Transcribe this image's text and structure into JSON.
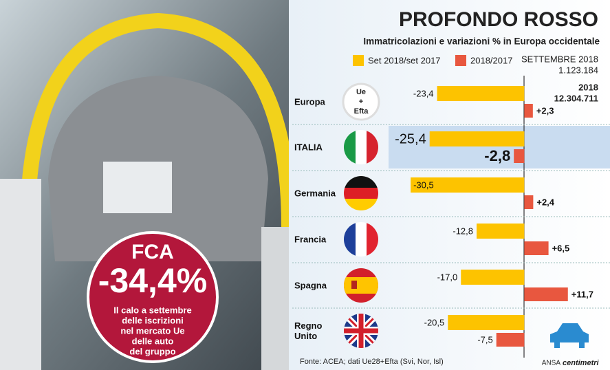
{
  "title": "PROFONDO ROSSO",
  "subtitle": "Immatricolazioni e variazioni % in Europa occidentale",
  "totals": {
    "month_label": "SETTEMBRE 2018",
    "month_value": "1.123.184",
    "year_label": "2018",
    "year_value": "12.304.711"
  },
  "fca": {
    "name": "FCA",
    "change": "-34,4%",
    "caption": [
      "Il calo a settembre",
      "delle iscrizioni",
      "nel mercato Ue",
      "delle auto",
      "del gruppo"
    ]
  },
  "europe_badge": [
    "Ue",
    "+",
    "Efta"
  ],
  "chart_data": {
    "type": "bar",
    "orientation": "horizontal",
    "categories": [
      "Europa",
      "ITALIA",
      "Germania",
      "Francia",
      "Spagna",
      "Regno Unito"
    ],
    "series": [
      {
        "name": "Set 2018/set 2017",
        "color": "#fdc300",
        "values": [
          -23.4,
          -25.4,
          -30.5,
          -12.8,
          -17.0,
          -20.5
        ],
        "value_labels": [
          "-23,4",
          "-25,4",
          "-30,5",
          "-12,8",
          "-17,0",
          "-20,5"
        ]
      },
      {
        "name": "2018/2017",
        "color": "#e8573f",
        "values": [
          2.3,
          -2.8,
          2.4,
          6.5,
          11.7,
          -7.5
        ],
        "value_labels": [
          "+2,3",
          "-2,8",
          "+2,4",
          "+6,5",
          "+11,7",
          "-7,5"
        ]
      }
    ],
    "xlim": [
      -35,
      23
    ],
    "highlight": "ITALIA"
  },
  "source": "Fonte: ACEA; dati Ue28+Efta (Svi, Nor, Isl)",
  "credit": {
    "agency": "ANSA",
    "brand": "centimetri"
  }
}
